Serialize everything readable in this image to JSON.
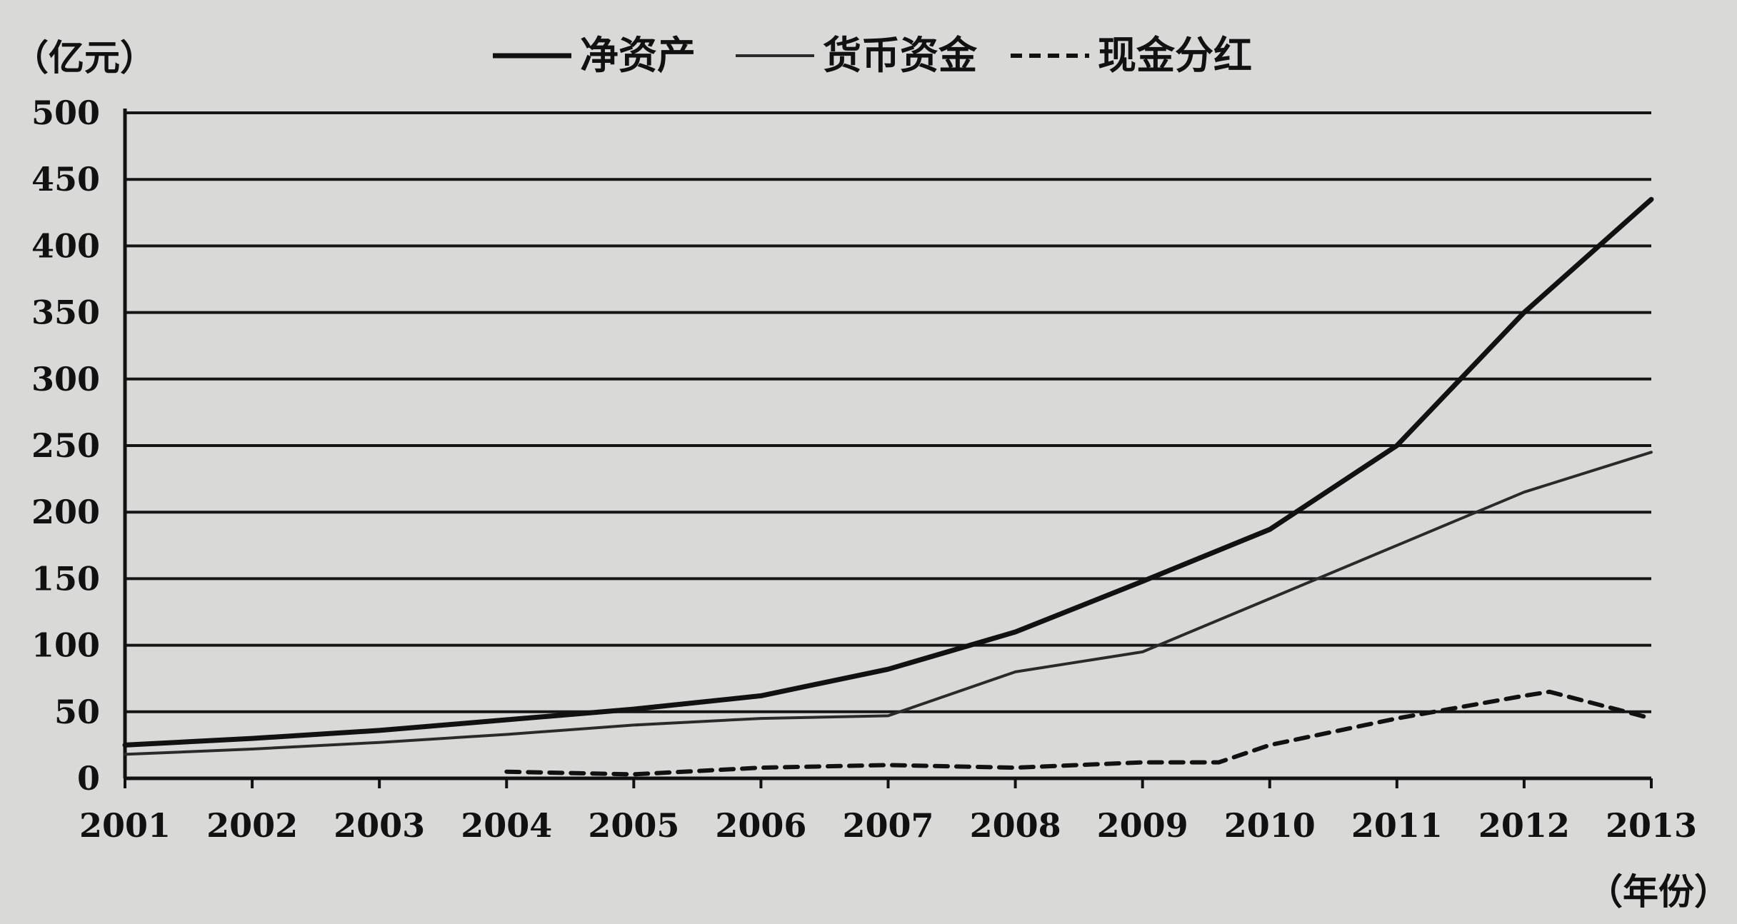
{
  "chart_data": {
    "type": "line",
    "y_unit_label": "（亿元）",
    "x_unit_label": "（年份）",
    "x": [
      2001,
      2002,
      2003,
      2004,
      2005,
      2006,
      2007,
      2008,
      2009,
      2010,
      2011,
      2012,
      2013
    ],
    "yticks": [
      0,
      50,
      100,
      150,
      200,
      250,
      300,
      350,
      400,
      450,
      500
    ],
    "ylim": [
      0,
      500
    ],
    "grid": true,
    "legend_position": "top",
    "series": [
      {
        "name": "净资产",
        "style": "solid",
        "color": "#111111",
        "width": "thick",
        "x": [
          2001,
          2002,
          2003,
          2004,
          2005,
          2006,
          2007,
          2008,
          2009,
          2010,
          2011,
          2012,
          2013
        ],
        "values": [
          25,
          30,
          36,
          44,
          52,
          62,
          82,
          110,
          148,
          187,
          250,
          350,
          435
        ]
      },
      {
        "name": "货币资金",
        "style": "solid",
        "color": "#2a2a2a",
        "width": "thin",
        "x": [
          2001,
          2002,
          2003,
          2004,
          2005,
          2006,
          2007,
          2008,
          2009,
          2010,
          2011,
          2012,
          2013
        ],
        "values": [
          18,
          22,
          27,
          33,
          40,
          45,
          47,
          80,
          95,
          135,
          175,
          215,
          245
        ]
      },
      {
        "name": "现金分红",
        "style": "dashed",
        "color": "#111111",
        "width": "medium",
        "x": [
          2004,
          2005,
          2006,
          2007,
          2008,
          2009,
          2009.6,
          2010,
          2011,
          2012,
          2012.2,
          2013
        ],
        "values": [
          5,
          3,
          8,
          10,
          8,
          12,
          12,
          25,
          45,
          62,
          65,
          45
        ]
      }
    ]
  }
}
